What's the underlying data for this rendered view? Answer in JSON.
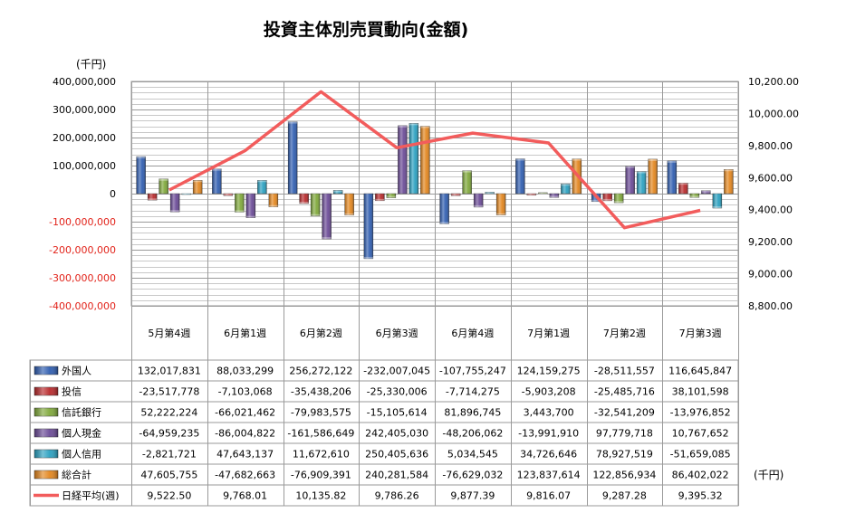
{
  "chart_data": {
    "type": "bar+line",
    "title": "投資主体別売買動向(金額)",
    "left_unit": "(千円)",
    "table_unit": "(千円)",
    "categories": [
      "5月第4週",
      "6月第1週",
      "6月第2週",
      "6月第3週",
      "6月第4週",
      "7月第1週",
      "7月第2週",
      "7月第3週"
    ],
    "left_axis": {
      "ylim": [
        -400000000,
        400000000
      ],
      "ticks": [
        400000000,
        300000000,
        200000000,
        100000000,
        0,
        -100000000,
        -200000000,
        -300000000,
        -400000000
      ],
      "tick_labels": [
        "400,000,000",
        "300,000,000",
        "200,000,000",
        "100,000,000",
        "0",
        "-100,000,000",
        "-200,000,000",
        "-300,000,000",
        "-400,000,000"
      ]
    },
    "right_axis": {
      "ylim": [
        8800,
        10200
      ],
      "ticks": [
        10200,
        10000,
        9800,
        9600,
        9400,
        9200,
        9000,
        8800
      ],
      "tick_labels": [
        "10,200.00",
        "10,000.00",
        "9,800.00",
        "9,600.00",
        "9,400.00",
        "9,200.00",
        "9,000.00",
        "8,800.00"
      ]
    },
    "series": [
      {
        "name": "外国人",
        "kind": "bar",
        "color": "#2f5db0",
        "values": [
          132017831,
          88033299,
          256272122,
          -232007045,
          -107755247,
          124159275,
          -28511557,
          116645847
        ],
        "labels": [
          "132,017,831",
          "88,033,299",
          "256,272,122",
          "-232,007,045",
          "-107,755,247",
          "124,159,275",
          "-28,511,557",
          "116,645,847"
        ]
      },
      {
        "name": "投信",
        "kind": "bar",
        "color": "#b8292b",
        "values": [
          -23517778,
          -7103068,
          -35438206,
          -25330006,
          -7714275,
          -5903208,
          -25485716,
          38101598
        ],
        "labels": [
          "-23,517,778",
          "-7,103,068",
          "-35,438,206",
          "-25,330,006",
          "-7,714,275",
          "-5,903,208",
          "-25,485,716",
          "38,101,598"
        ]
      },
      {
        "name": "信託銀行",
        "kind": "bar",
        "color": "#7fa83a",
        "values": [
          52222224,
          -66021462,
          -79983575,
          -15105614,
          81896745,
          3443700,
          -32541209,
          -13976852
        ],
        "labels": [
          "52,222,224",
          "-66,021,462",
          "-79,983,575",
          "-15,105,614",
          "81,896,745",
          "3,443,700",
          "-32,541,209",
          "-13,976,852"
        ]
      },
      {
        "name": "個人現金",
        "kind": "bar",
        "color": "#6a4a96",
        "values": [
          -64959235,
          -86004822,
          -161586649,
          242405030,
          -48206062,
          -13991910,
          97779718,
          10767652
        ],
        "labels": [
          "-64,959,235",
          "-86,004,822",
          "-161,586,649",
          "242,405,030",
          "-48,206,062",
          "-13,991,910",
          "97,779,718",
          "10,767,652"
        ]
      },
      {
        "name": "個人信用",
        "kind": "bar",
        "color": "#2aa0c0",
        "values": [
          -2821721,
          47643137,
          11672610,
          250405636,
          5034545,
          34726646,
          78927519,
          -51659085
        ],
        "labels": [
          "-2,821,721",
          "47,643,137",
          "11,672,610",
          "250,405,636",
          "5,034,545",
          "34,726,646",
          "78,927,519",
          "-51,659,085"
        ]
      },
      {
        "name": "総合計",
        "kind": "bar",
        "color": "#e3861e",
        "values": [
          47605755,
          -47682663,
          -76909391,
          240281584,
          -76629032,
          123837614,
          122856934,
          86402022
        ],
        "labels": [
          "47,605,755",
          "-47,682,663",
          "-76,909,391",
          "240,281,584",
          "-76,629,032",
          "123,837,614",
          "122,856,934",
          "86,402,022"
        ]
      },
      {
        "name": "日経平均(週)",
        "kind": "line",
        "axis": "right",
        "color": "#f25c5c",
        "values": [
          9522.5,
          9768.01,
          10135.82,
          9786.26,
          9877.39,
          9816.07,
          9287.28,
          9395.32
        ],
        "labels": [
          "9,522.50",
          "9,768.01",
          "10,135.82",
          "9,786.26",
          "9,877.39",
          "9,816.07",
          "9,287.28",
          "9,395.32"
        ]
      }
    ],
    "grid": true,
    "legend": "data-table"
  }
}
